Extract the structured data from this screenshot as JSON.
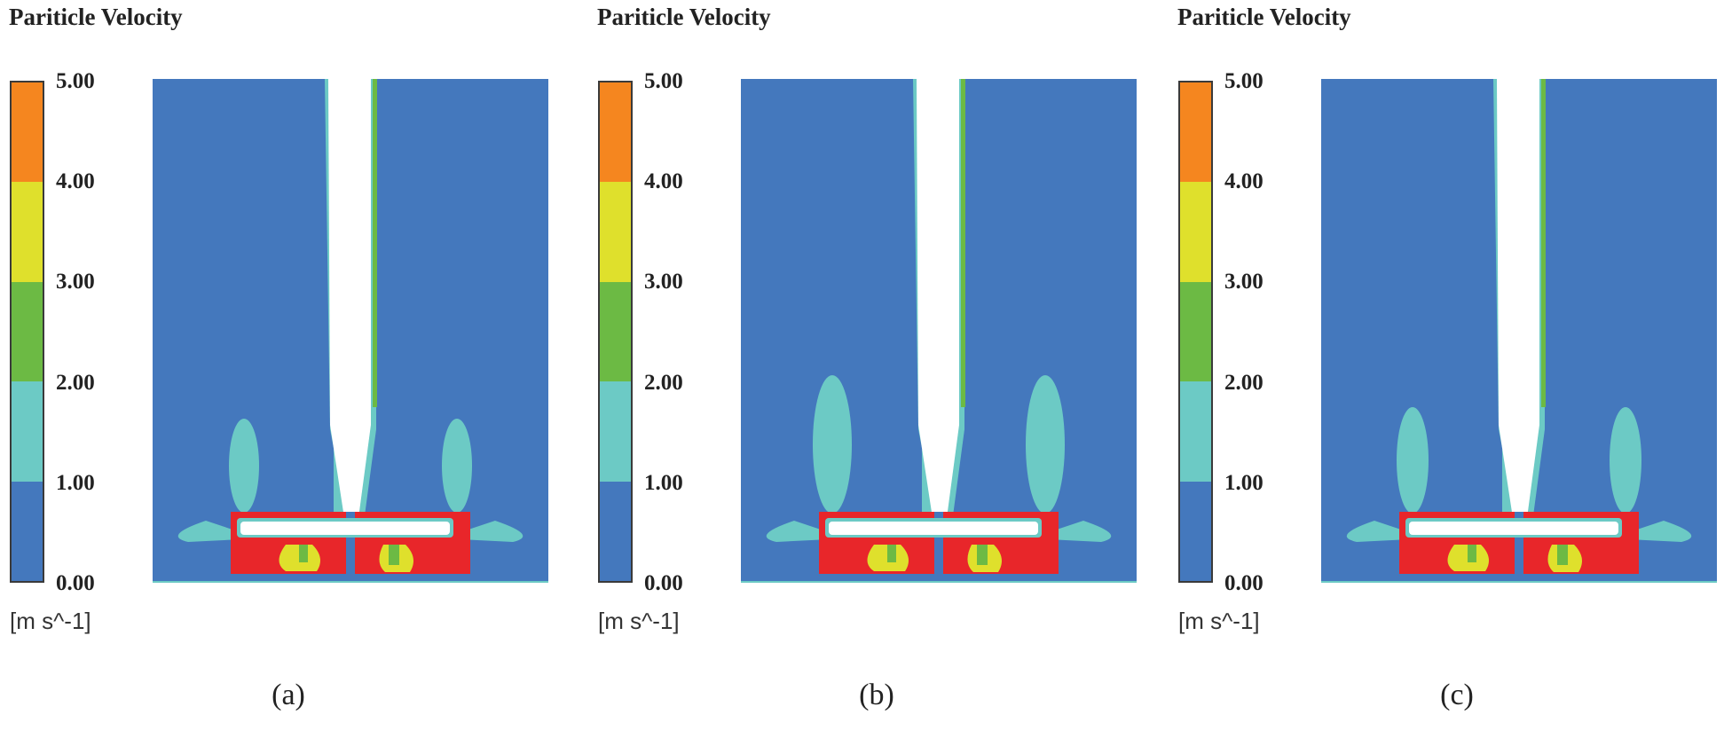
{
  "figure": {
    "colors": {
      "band_0_1": "#4478bd",
      "band_1_2": "#6ccac5",
      "band_2_3": "#6cba44",
      "band_3_4": "#dfe02c",
      "band_4_5": "#f5861f",
      "above_5": "#e8262a",
      "solid": "#ffffff"
    },
    "panels": [
      {
        "title": "Pariticle Velocity",
        "legend": {
          "ticks": [
            "5.00",
            "4.00",
            "3.00",
            "2.00",
            "1.00",
            "0.00"
          ],
          "unit": "[m s^-1]"
        },
        "caption": "(a)",
        "plume_size": "small"
      },
      {
        "title": "Pariticle Velocity",
        "legend": {
          "ticks": [
            "5.00",
            "4.00",
            "3.00",
            "2.00",
            "1.00",
            "0.00"
          ],
          "unit": "[m s^-1]"
        },
        "caption": "(b)",
        "plume_size": "large"
      },
      {
        "title": "Pariticle Velocity",
        "legend": {
          "ticks": [
            "5.00",
            "4.00",
            "3.00",
            "2.00",
            "1.00",
            "0.00"
          ],
          "unit": "[m s^-1]"
        },
        "caption": "(c)",
        "plume_size": "small"
      }
    ]
  }
}
